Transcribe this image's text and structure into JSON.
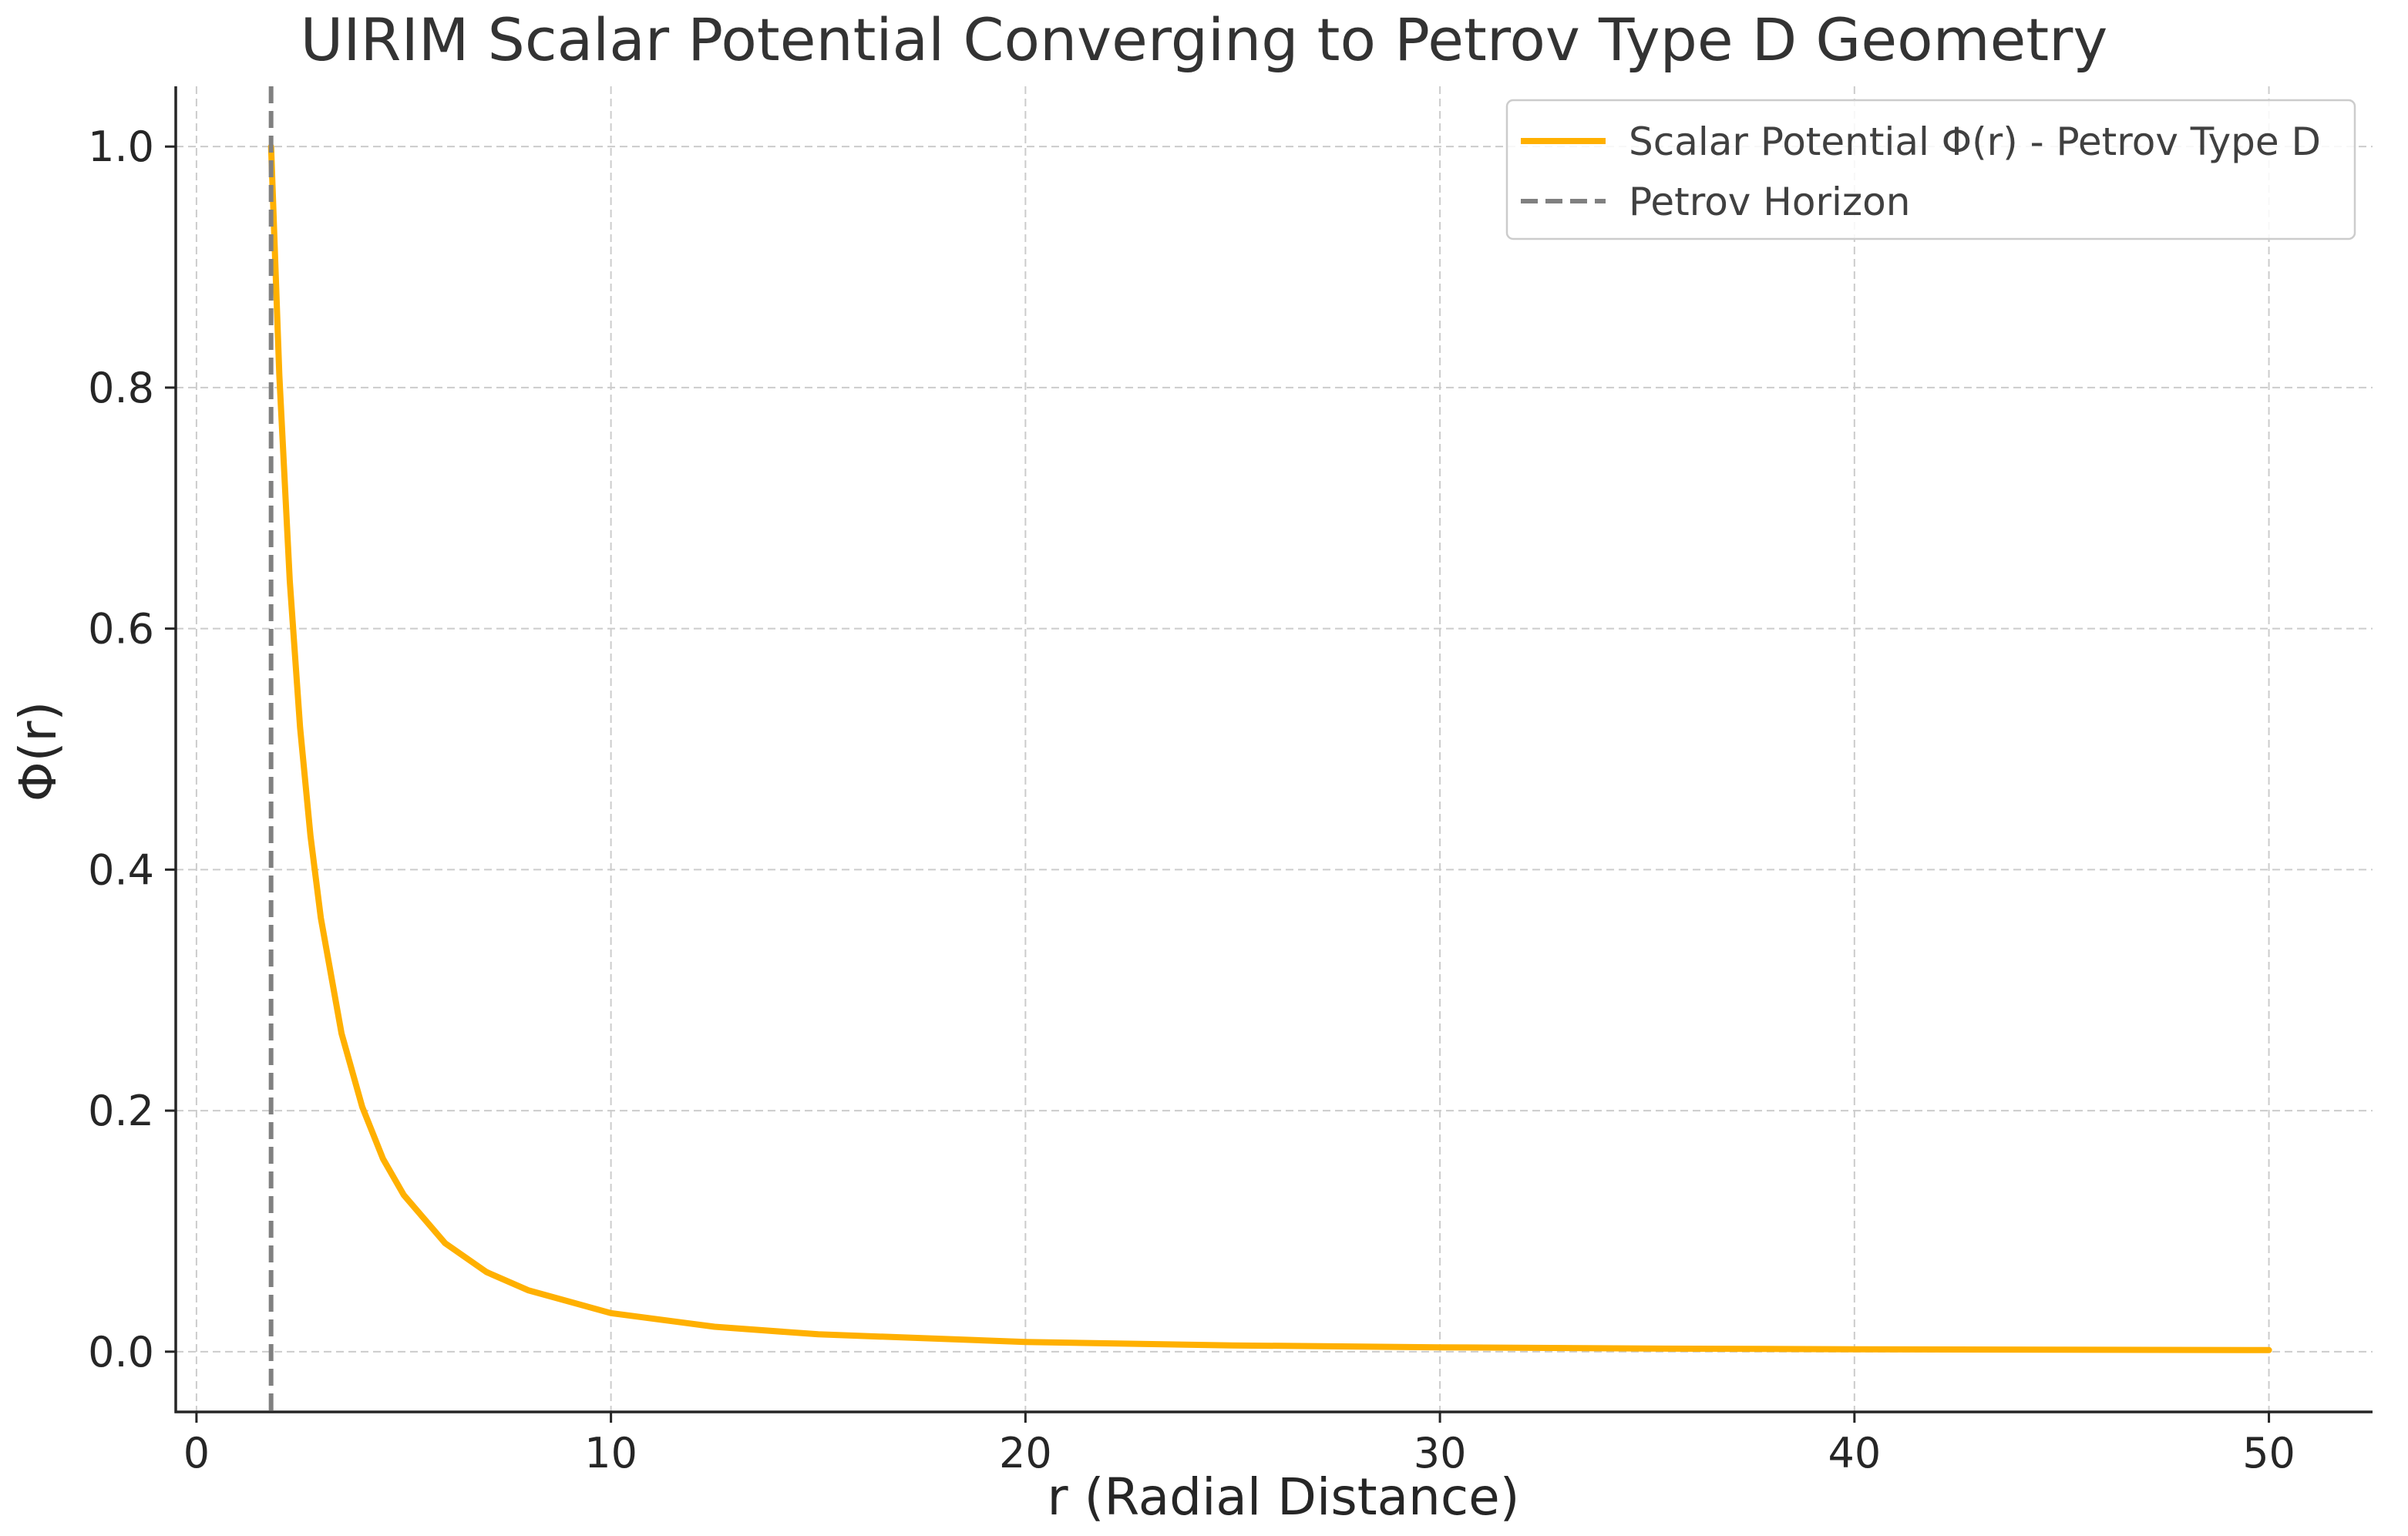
{
  "chart_data": {
    "type": "line",
    "title": "UIRIM Scalar Potential Converging to Petrov Type D Geometry",
    "xlabel": "r (Radial Distance)",
    "ylabel": "Φ(r)",
    "xlim": [
      -0.5,
      52.5
    ],
    "ylim": [
      -0.05,
      1.05
    ],
    "xticks": [
      0,
      10,
      20,
      30,
      40,
      50
    ],
    "xtick_labels": [
      "0",
      "10",
      "20",
      "30",
      "40",
      "50"
    ],
    "yticks": [
      0.0,
      0.2,
      0.4,
      0.6,
      0.8,
      1.0
    ],
    "ytick_labels": [
      "0.0",
      "0.2",
      "0.4",
      "0.6",
      "0.8",
      "1.0"
    ],
    "grid": true,
    "legend_position": "top-right",
    "series": [
      {
        "name": "Scalar Potential Φ(r) - Petrov Type D",
        "color": "#FFB000",
        "style": "solid",
        "x": [
          1.8,
          2.0,
          2.25,
          2.5,
          2.75,
          3.0,
          3.5,
          4.0,
          4.5,
          5.0,
          6.0,
          7.0,
          8.0,
          10.0,
          12.5,
          15.0,
          20.0,
          25.0,
          30.0,
          35.0,
          40.0,
          45.0,
          50.0
        ],
        "y": [
          1.0,
          0.81,
          0.64,
          0.518,
          0.428,
          0.36,
          0.264,
          0.203,
          0.16,
          0.13,
          0.09,
          0.066,
          0.051,
          0.032,
          0.0207,
          0.0144,
          0.0081,
          0.0052,
          0.0036,
          0.0026,
          0.002,
          0.0016,
          0.0013
        ]
      },
      {
        "name": "Petrov Horizon",
        "color": "#808080",
        "style": "dashed",
        "x_vertical": 1.8
      }
    ]
  }
}
